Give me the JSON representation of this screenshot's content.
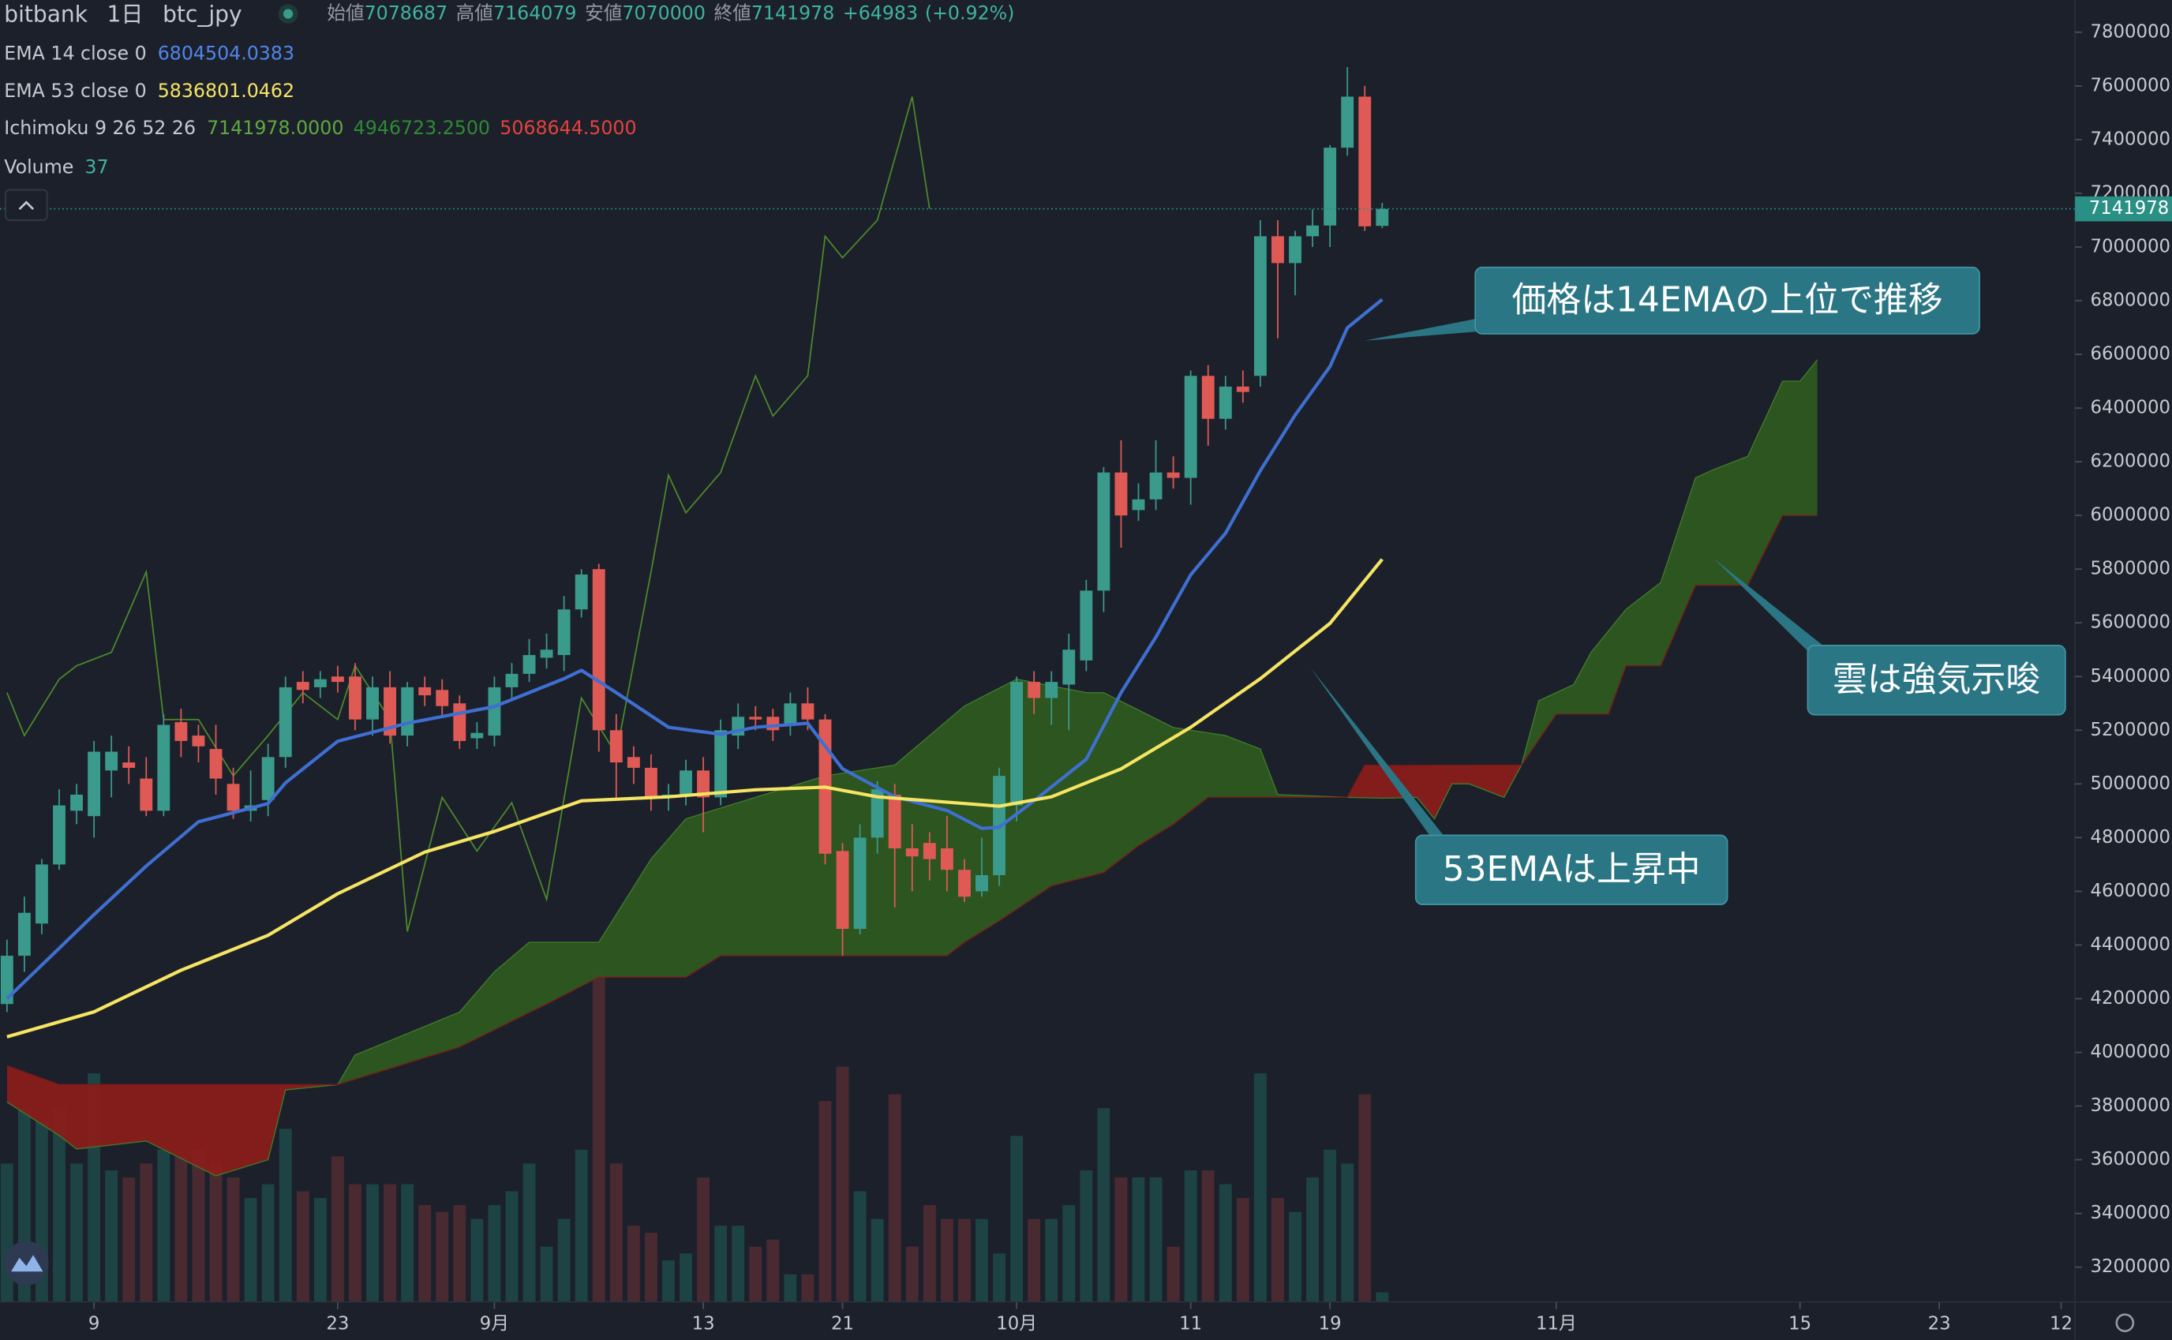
{
  "chart_data": {
    "type": "candlestick",
    "header": {
      "exchange": "bitbank",
      "interval": "1日",
      "symbol": "btc_jpy",
      "open_label": "始値",
      "high_label": "高値",
      "low_label": "安値",
      "close_label": "終値",
      "change": "+64983",
      "change_percent": "(+0.92%)"
    },
    "open": [
      4180000,
      4360000,
      4480000,
      4700000,
      4900000,
      4880000,
      5050000,
      5080000,
      5020000,
      4900000,
      5230000,
      5180000,
      5130000,
      5000000,
      4900000,
      4940000,
      5100000,
      5380000,
      5360000,
      5400000,
      5400000,
      5240000,
      5360000,
      5180000,
      5360000,
      5350000,
      5300000,
      5170000,
      5180000,
      5360000,
      5410000,
      5470000,
      5480000,
      5650000,
      5800000,
      5200000,
      5100000,
      5060000,
      4950000,
      4960000,
      5050000,
      4950000,
      5180000,
      5250000,
      5250000,
      5220000,
      5300000,
      5240000,
      4750000,
      4460000,
      4800000,
      4960000,
      4760000,
      4780000,
      4760000,
      4680000,
      4600000,
      4660000,
      4920000,
      5380000,
      5320000,
      5370000,
      5460000,
      5720000,
      6160000,
      6020000,
      6060000,
      6160000,
      6140000,
      6520000,
      6360000,
      6480000,
      6520000,
      7040000,
      6940000,
      7040000,
      7080000,
      7370000,
      7560000,
      7078687
    ],
    "high": [
      4420000,
      4580000,
      4720000,
      4980000,
      5000000,
      5160000,
      5180000,
      5140000,
      5100000,
      5260000,
      5280000,
      5220000,
      5220000,
      5060000,
      5050000,
      5150000,
      5400000,
      5420000,
      5420000,
      5440000,
      5450000,
      5400000,
      5420000,
      5380000,
      5400000,
      5390000,
      5330000,
      5230000,
      5400000,
      5450000,
      5540000,
      5560000,
      5700000,
      5800000,
      5820000,
      5260000,
      5140000,
      5110000,
      5000000,
      5090000,
      5100000,
      5240000,
      5300000,
      5290000,
      5280000,
      5340000,
      5360000,
      5260000,
      4780000,
      4850000,
      5010000,
      5000000,
      4850000,
      4820000,
      4880000,
      4720000,
      4800000,
      5060000,
      5400000,
      5420000,
      5420000,
      5560000,
      5760000,
      6180000,
      6280000,
      6120000,
      6280000,
      6220000,
      6540000,
      6560000,
      6520000,
      6540000,
      7100000,
      7100000,
      7060000,
      7140000,
      7380000,
      7670000,
      7600000,
      7164079
    ],
    "low": [
      4150000,
      4300000,
      4440000,
      4680000,
      4850000,
      4800000,
      4950000,
      5000000,
      4880000,
      4880000,
      5100000,
      5080000,
      4960000,
      4870000,
      4860000,
      4880000,
      5060000,
      5300000,
      5320000,
      5340000,
      5200000,
      5180000,
      5150000,
      5140000,
      5290000,
      5250000,
      5130000,
      5130000,
      5140000,
      5320000,
      5380000,
      5430000,
      5420000,
      5620000,
      5120000,
      4940000,
      5000000,
      4900000,
      4900000,
      4920000,
      4820000,
      4920000,
      5130000,
      5200000,
      5160000,
      5180000,
      5200000,
      4700000,
      4360000,
      4440000,
      4740000,
      4540000,
      4600000,
      4640000,
      4600000,
      4560000,
      4580000,
      4620000,
      4860000,
      5260000,
      5220000,
      5200000,
      5420000,
      5640000,
      5880000,
      5980000,
      6020000,
      6100000,
      6040000,
      6260000,
      6320000,
      6420000,
      6480000,
      6660000,
      6820000,
      7000000,
      7000000,
      7340000,
      7060000,
      7070000
    ],
    "close": [
      4360000,
      4520000,
      4700000,
      4920000,
      4960000,
      5120000,
      5120000,
      5060000,
      4900000,
      5220000,
      5160000,
      5140000,
      5020000,
      4900000,
      4920000,
      5100000,
      5360000,
      5350000,
      5390000,
      5380000,
      5240000,
      5360000,
      5180000,
      5360000,
      5330000,
      5290000,
      5160000,
      5190000,
      5360000,
      5410000,
      5480000,
      5500000,
      5650000,
      5780000,
      5200000,
      5080000,
      5060000,
      4950000,
      4960000,
      5050000,
      4950000,
      5200000,
      5250000,
      5240000,
      5200000,
      5300000,
      5240000,
      4740000,
      4460000,
      4800000,
      4980000,
      4760000,
      4730000,
      4720000,
      4680000,
      4580000,
      4660000,
      5030000,
      5380000,
      5320000,
      5380000,
      5500000,
      5720000,
      6160000,
      6000000,
      6060000,
      6160000,
      6140000,
      6520000,
      6360000,
      6480000,
      6460000,
      7040000,
      6940000,
      7040000,
      7080000,
      7370000,
      7560000,
      7076995,
      7141978
    ],
    "up_color": "#3a9a8c",
    "down_color": "#e05a55",
    "volume": {
      "name": "Volume",
      "up_color": "#1d4345",
      "down_color": "#4a2a31",
      "values": [
        530,
        742,
        689,
        742,
        530,
        875,
        504,
        477,
        530,
        583,
        557,
        583,
        530,
        477,
        398,
        451,
        663,
        424,
        398,
        557,
        451,
        451,
        451,
        451,
        371,
        345,
        371,
        318,
        371,
        424,
        530,
        212,
        318,
        583,
        1272,
        530,
        292,
        265,
        159,
        186,
        477,
        292,
        292,
        212,
        239,
        106,
        106,
        769,
        901,
        424,
        318,
        795,
        212,
        371,
        318,
        318,
        318,
        186,
        636,
        318,
        318,
        371,
        504,
        742,
        477,
        477,
        477,
        212,
        504,
        504,
        451,
        398,
        875,
        398,
        345,
        477,
        583,
        530,
        795,
        37
      ]
    },
    "series": [
      {
        "name": "EMA 14 close 0",
        "color": "#3f6fd1",
        "x": [
          0,
          5,
          8,
          11,
          15,
          16,
          19,
          23,
          28,
          32,
          33,
          35,
          38,
          41,
          43,
          46,
          48,
          51,
          54,
          56,
          57,
          59,
          62,
          64,
          66,
          68,
          70,
          72,
          74,
          76,
          77,
          79
        ],
        "values": [
          4200000,
          4513000,
          4694000,
          4859000,
          4927000,
          5004000,
          5159000,
          5226000,
          5288000,
          5392000,
          5423000,
          5340000,
          5211000,
          5185000,
          5211000,
          5226000,
          5056000,
          4952000,
          4901000,
          4834000,
          4839000,
          4937000,
          5092000,
          5340000,
          5547000,
          5779000,
          5934000,
          6167000,
          6374000,
          6555000,
          6699000,
          6804504.0383
        ]
      },
      {
        "name": "EMA 53 close 0",
        "color": "#f6e463",
        "x": [
          0,
          5,
          10,
          15,
          19,
          24,
          28,
          33,
          38,
          43,
          47,
          50,
          55,
          57,
          60,
          64,
          68,
          72,
          76,
          79
        ],
        "values": [
          4058000,
          4151000,
          4306000,
          4436000,
          4591000,
          4746000,
          4823000,
          4937000,
          4952000,
          4978000,
          4988000,
          4952000,
          4927000,
          4917000,
          4952000,
          5056000,
          5211000,
          5392000,
          5598000,
          5836801.0462
        ]
      }
    ],
    "ichimoku": {
      "name": "Ichimoku 9 26 52 26",
      "value_labels": [
        "7141978.0000",
        "4946723.2500",
        "5068644.5000"
      ],
      "value_colors": [
        "#5fa83f",
        "#2f8a32",
        "#e5423d"
      ],
      "bull_color": "#2e5a1e",
      "bear_color": "#8c1d1b",
      "lagging": {
        "color": "#4c8a2a",
        "x": [
          0,
          1,
          3,
          4,
          6,
          8,
          9,
          11,
          13,
          15,
          17,
          19,
          20,
          22,
          23,
          25,
          27,
          29,
          31,
          33,
          35,
          37,
          38,
          39,
          41,
          43,
          44,
          46,
          47,
          48,
          50,
          52,
          53
        ],
        "values": [
          5340000,
          5180000,
          5390000,
          5440000,
          5490000,
          5790000,
          5240000,
          5240000,
          5030000,
          5180000,
          5340000,
          5240000,
          5440000,
          5240000,
          4450000,
          4950000,
          4750000,
          4930000,
          4570000,
          5320000,
          5110000,
          5790000,
          6150000,
          6010000,
          6160000,
          6520000,
          6370000,
          6520000,
          7040000,
          6960000,
          7100000,
          7560000,
          7141978
        ]
      },
      "span_a": {
        "color": "#3f7a2a",
        "x": [
          0,
          3,
          4,
          8,
          12,
          15,
          16,
          19,
          20,
          23,
          26,
          28,
          30,
          34,
          37,
          39,
          43,
          47,
          51,
          53,
          55,
          58,
          62,
          63,
          67,
          70,
          72,
          73,
          77,
          79,
          81,
          82,
          83,
          84,
          86,
          87,
          88,
          90,
          91,
          93,
          95,
          97,
          98,
          100,
          102,
          103,
          104
        ],
        "values": [
          3815000,
          3690000,
          3640000,
          3670000,
          3540000,
          3600000,
          3860000,
          3880000,
          3990000,
          4070000,
          4150000,
          4300000,
          4410000,
          4410000,
          4720000,
          4870000,
          4950000,
          5030000,
          5070000,
          5180000,
          5290000,
          5390000,
          5340000,
          5340000,
          5210000,
          5180000,
          5130000,
          4960000,
          4950000,
          4946723.25,
          4950000,
          4870000,
          5000000,
          5000000,
          4950000,
          5070000,
          5310000,
          5370000,
          5490000,
          5650000,
          5750000,
          6140000,
          6170000,
          6220000,
          6500000,
          6500000,
          6580000
        ]
      },
      "span_b": {
        "color": "#7a1a18",
        "x": [
          0,
          3,
          19,
          21,
          26,
          31,
          34,
          39,
          41,
          54,
          55,
          57,
          60,
          63,
          65,
          67,
          69,
          77,
          78,
          79,
          87,
          89,
          92,
          93,
          95,
          97,
          100,
          102,
          104
        ],
        "values": [
          3950000,
          3880000,
          3880000,
          3920000,
          4020000,
          4180000,
          4280000,
          4280000,
          4360000,
          4360000,
          4410000,
          4490000,
          4620000,
          4670000,
          4770000,
          4850000,
          4950000,
          4950000,
          5070000,
          5068644.5,
          5070000,
          5260000,
          5260000,
          5440000,
          5440000,
          5740000,
          5740000,
          6000000,
          6000000
        ]
      }
    },
    "xlim": [
      -0.4,
      118.8
    ],
    "xticks": [
      {
        "value": 5,
        "label": "9"
      },
      {
        "value": 19,
        "label": "23"
      },
      {
        "value": 28,
        "label": "9月"
      },
      {
        "value": 40,
        "label": "13"
      },
      {
        "value": 48,
        "label": "21"
      },
      {
        "value": 58,
        "label": "10月"
      },
      {
        "value": 68,
        "label": "11"
      },
      {
        "value": 76,
        "label": "19"
      },
      {
        "value": 89,
        "label": "11月"
      },
      {
        "value": 103,
        "label": "15"
      },
      {
        "value": 111,
        "label": "23"
      },
      {
        "value": 118,
        "label": "12"
      }
    ],
    "ylim": [
      3070000,
      7920000
    ],
    "yticks": [
      3200000,
      3400000,
      3600000,
      3800000,
      4000000,
      4200000,
      4400000,
      4600000,
      4800000,
      5000000,
      5200000,
      5400000,
      5600000,
      5800000,
      6000000,
      6200000,
      6400000,
      6600000,
      6800000,
      7000000,
      7200000,
      7400000,
      7600000,
      7800000
    ],
    "price_line_color": "#2a8f84",
    "annotations": [
      {
        "text": "価格は14EMAの上位で推移"
      },
      {
        "text": "雲は強気示唆"
      },
      {
        "text": "53EMAは上昇中"
      }
    ],
    "annotation_color": "#2b7685"
  }
}
